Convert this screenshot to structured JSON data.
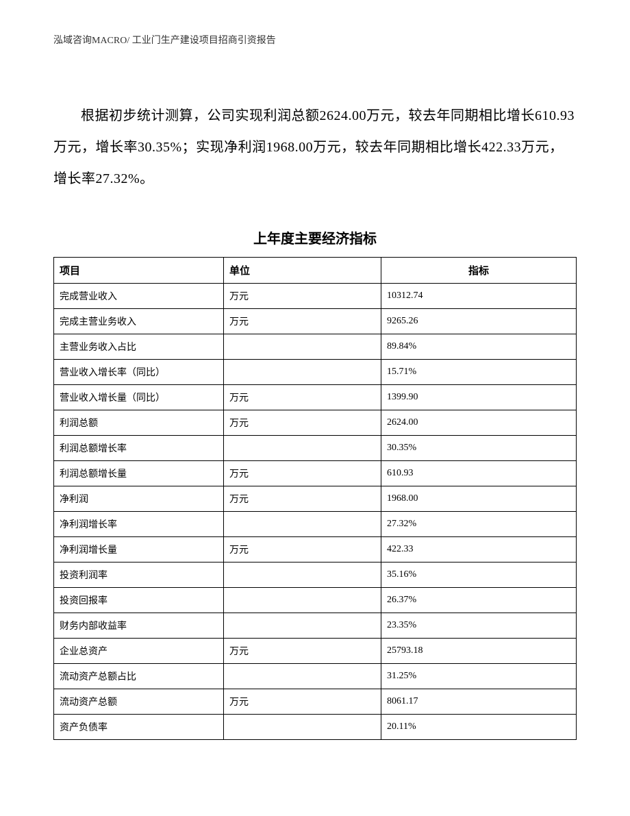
{
  "header": "泓域咨询MACRO/ 工业门生产建设项目招商引资报告",
  "paragraph": "根据初步统计测算，公司实现利润总额2624.00万元，较去年同期相比增长610.93万元，增长率30.35%；实现净利润1968.00万元，较去年同期相比增长422.33万元，增长率27.32%。",
  "table": {
    "title": "上年度主要经济指标",
    "columns": [
      "项目",
      "单位",
      "指标"
    ],
    "rows": [
      [
        "完成营业收入",
        "万元",
        "10312.74"
      ],
      [
        "完成主营业务收入",
        "万元",
        "9265.26"
      ],
      [
        "主营业务收入占比",
        "",
        "89.84%"
      ],
      [
        "营业收入增长率（同比）",
        "",
        "15.71%"
      ],
      [
        "营业收入增长量（同比）",
        "万元",
        "1399.90"
      ],
      [
        "利润总额",
        "万元",
        "2624.00"
      ],
      [
        "利润总额增长率",
        "",
        "30.35%"
      ],
      [
        "利润总额增长量",
        "万元",
        "610.93"
      ],
      [
        "净利润",
        "万元",
        "1968.00"
      ],
      [
        "净利润增长率",
        "",
        "27.32%"
      ],
      [
        "净利润增长量",
        "万元",
        "422.33"
      ],
      [
        "投资利润率",
        "",
        "35.16%"
      ],
      [
        "投资回报率",
        "",
        "26.37%"
      ],
      [
        "财务内部收益率",
        "",
        "23.35%"
      ],
      [
        "企业总资产",
        "万元",
        "25793.18"
      ],
      [
        "流动资产总额占比",
        "",
        "31.25%"
      ],
      [
        "流动资产总额",
        "万元",
        "8061.17"
      ],
      [
        "资产负债率",
        "",
        "20.11%"
      ]
    ]
  }
}
